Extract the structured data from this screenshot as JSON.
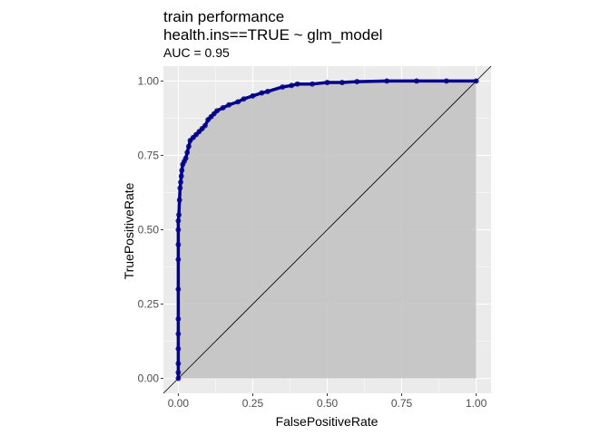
{
  "chart_data": {
    "type": "line",
    "title_lines": [
      "train performance",
      "health.ins==TRUE ~ glm_model"
    ],
    "subtitle": "AUC = 0.95",
    "xlabel": "FalsePositiveRate",
    "ylabel": "TruePositiveRate",
    "xlim": [
      -0.05,
      1.05
    ],
    "ylim": [
      -0.05,
      1.05
    ],
    "x_ticks": [
      0,
      0.25,
      0.5,
      0.75,
      1
    ],
    "x_tick_labels": [
      "0.00",
      "0.25",
      "0.50",
      "0.75",
      "1.00"
    ],
    "y_ticks": [
      0,
      0.25,
      0.5,
      0.75,
      1
    ],
    "y_tick_labels": [
      "0.00",
      "0.25",
      "0.50",
      "0.75",
      "1.00"
    ],
    "grid": true,
    "reference_line": "diagonal",
    "colors": {
      "panel": "#ebebeb",
      "grid": "#ffffff",
      "area": "#c3c3c3",
      "curve": "#00008b",
      "reference": "#000000"
    },
    "series": [
      {
        "x": [
          0,
          0,
          0,
          0,
          0,
          0,
          0,
          0,
          0,
          0,
          0,
          0.002,
          0.004,
          0.006,
          0.008,
          0.01,
          0.012,
          0.015,
          0.02,
          0.025,
          0.03,
          0.035,
          0.04,
          0.05,
          0.06,
          0.07,
          0.08,
          0.09,
          0.1,
          0.11,
          0.12,
          0.13,
          0.15,
          0.17,
          0.2,
          0.22,
          0.25,
          0.28,
          0.3,
          0.35,
          0.38,
          0.4,
          0.45,
          0.5,
          0.55,
          0.6,
          0.7,
          0.8,
          0.9,
          1
        ],
        "y": [
          0,
          0.02,
          0.05,
          0.1,
          0.15,
          0.2,
          0.3,
          0.4,
          0.45,
          0.5,
          0.53,
          0.55,
          0.6,
          0.64,
          0.66,
          0.68,
          0.7,
          0.72,
          0.73,
          0.74,
          0.76,
          0.78,
          0.8,
          0.81,
          0.82,
          0.83,
          0.84,
          0.85,
          0.87,
          0.88,
          0.89,
          0.9,
          0.91,
          0.92,
          0.93,
          0.94,
          0.95,
          0.96,
          0.965,
          0.98,
          0.985,
          0.99,
          0.99,
          0.995,
          0.995,
          0.998,
          1,
          1,
          1,
          1
        ]
      }
    ]
  }
}
